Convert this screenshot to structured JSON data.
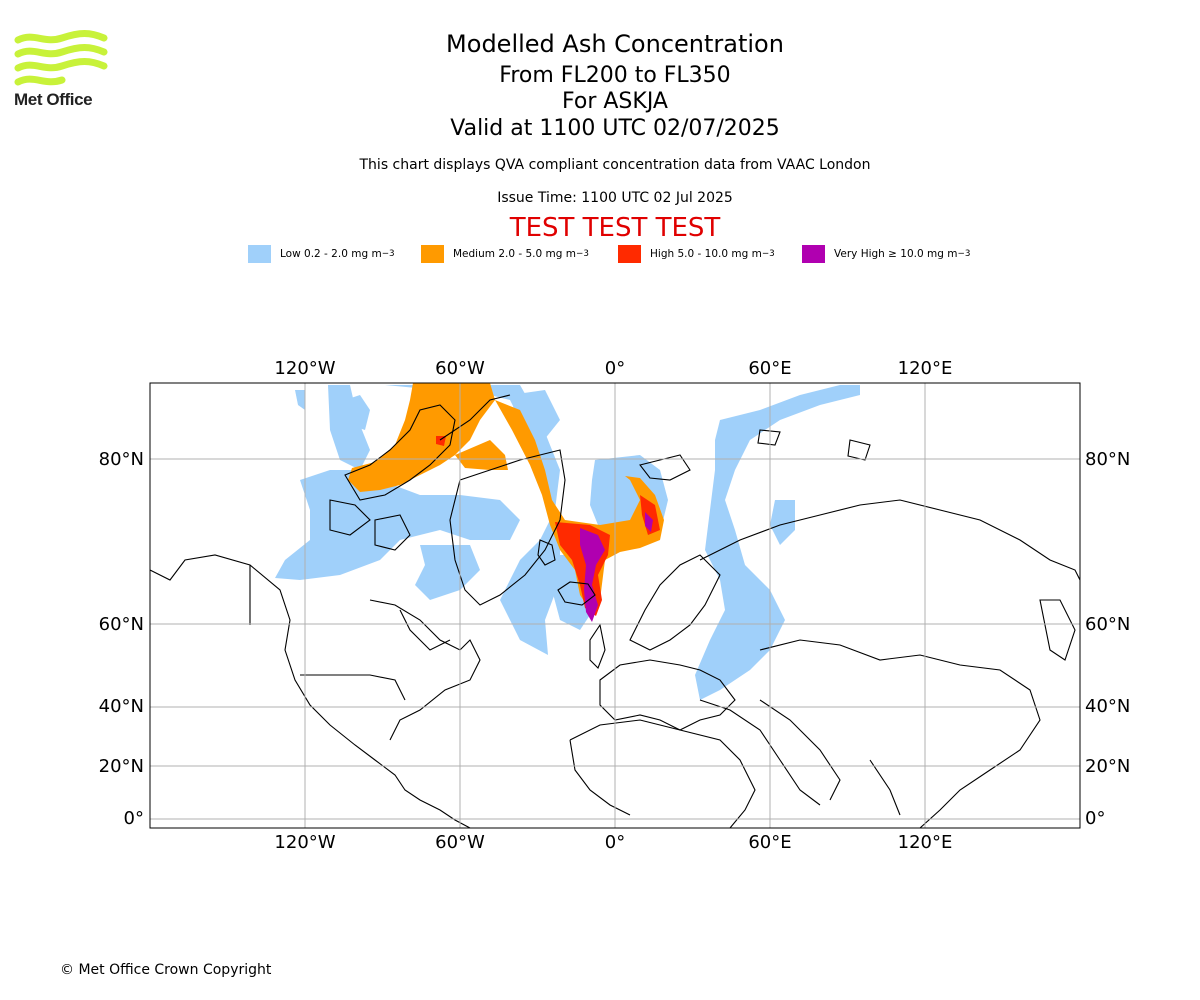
{
  "logo": {
    "text": "Met Office",
    "wave_color": "#c8f23a"
  },
  "header": {
    "title": "Modelled Ash Concentration",
    "level_range": "From FL200 to FL350",
    "volcano": "For ASKJA",
    "valid_time": "Valid at 1100 UTC 02/07/2025",
    "compliance_note": "This chart displays QVA compliant concentration data from VAAC London",
    "issue_time": "Issue Time: 1100 UTC 02 Jul 2025",
    "test_banner": "TEST TEST TEST"
  },
  "legend": [
    {
      "label": "Low 0.2 - 2.0 mg m",
      "color": "#a0d0fa"
    },
    {
      "label": "Medium 2.0 - 5.0 mg m",
      "color": "#ff9a00"
    },
    {
      "label": "High 5.0 - 10.0 mg m",
      "color": "#ff2a00"
    },
    {
      "label": "Very High ≥ 10.0 mg m",
      "color": "#b000b0"
    }
  ],
  "legend_unit_exponent": "−3",
  "map": {
    "lon_ticks": [
      "120°W",
      "60°W",
      "0°",
      "60°E",
      "120°E"
    ],
    "lat_ticks": [
      "80°N",
      "60°N",
      "40°N",
      "20°N",
      "0°"
    ],
    "grid": true
  },
  "footer": {
    "copyright": "© Met Office Crown Copyright"
  }
}
